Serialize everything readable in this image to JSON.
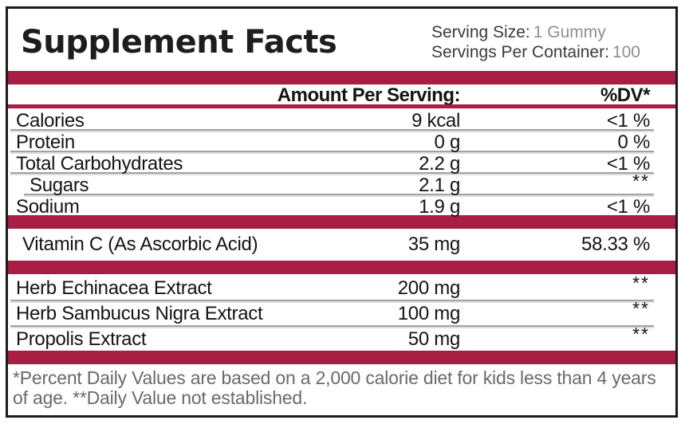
{
  "title": "Supplement Facts",
  "serving": {
    "size_label": "Serving Size:",
    "size_value": "1 Gummy",
    "container_label": "Servings Per Container:",
    "container_value": "100"
  },
  "table": {
    "amount_header": "Amount Per Serving:",
    "dv_header": "%DV*",
    "sections": [
      {
        "rows": [
          {
            "name": "Calories",
            "amount": "9 kcal",
            "dv": "<1 %"
          },
          {
            "name": "Protein",
            "amount": "0 g",
            "dv": "0 %"
          },
          {
            "name": "Total Carbohydrates",
            "amount": "2.2 g",
            "dv": "<1 %"
          },
          {
            "name": "Sugars",
            "amount": "2.1 g",
            "dv": "**",
            "indent": true
          },
          {
            "name": "Sodium",
            "amount": "1.9 g",
            "dv": "<1 %"
          }
        ]
      },
      {
        "rows": [
          {
            "name": "Vitamin C (As Ascorbic Acid)",
            "amount": "35 mg",
            "dv": "58.33 %"
          }
        ]
      },
      {
        "rows": [
          {
            "name": "Herb Echinacea Extract",
            "amount": "200 mg",
            "dv": "**"
          },
          {
            "name": "Herb Sambucus Nigra Extract",
            "amount": "100 mg",
            "dv": "**"
          },
          {
            "name": "Propolis Extract",
            "amount": "50 mg",
            "dv": "**"
          }
        ]
      }
    ]
  },
  "footer": "*Percent Daily Values are based on a 2,000 calorie diet for kids less than 4 years of age. **Daily Value not established.",
  "colors": {
    "accent": "#A81D43"
  }
}
